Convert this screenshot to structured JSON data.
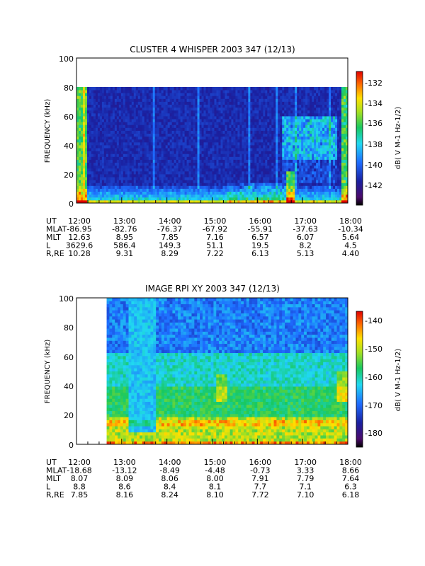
{
  "panels": [
    {
      "title": "CLUSTER 4 WHISPER 2003 347 (12/13)",
      "ylabel": "FREQUENCY (kHz)",
      "yticks": [
        "0",
        "20",
        "40",
        "60",
        "80",
        "100"
      ],
      "ylim": [
        0,
        100
      ],
      "xticks": [
        "12:00",
        "13:00",
        "14:00",
        "15:00",
        "16:00",
        "17:00",
        "18:00"
      ],
      "colorbar_label": "dB( V M-1 Hz-1/2)",
      "colorbar_ticks": [
        "-132",
        "-134",
        "-136",
        "-138",
        "-140",
        "-142"
      ],
      "ephemeris": [
        {
          "label": "UT",
          "values": [
            "12:00",
            "13:00",
            "14:00",
            "15:00",
            "16:00",
            "17:00",
            "18:00"
          ]
        },
        {
          "label": "MLAT",
          "values": [
            "-86.95",
            "-82.76",
            "-76.37",
            "-67.92",
            "-55.91",
            "-37.63",
            "-10.34"
          ]
        },
        {
          "label": "MLT",
          "values": [
            "12.63",
            "8.95",
            "7.85",
            "7.16",
            "6.57",
            "6.07",
            "5.64"
          ]
        },
        {
          "label": "L",
          "values": [
            "3629.6",
            "586.4",
            "149.3",
            "51.1",
            "19.5",
            "8.2",
            "4.5"
          ]
        },
        {
          "label": "R,RE",
          "values": [
            "10.28",
            "9.31",
            "8.29",
            "7.22",
            "6.13",
            "5.13",
            "4.40"
          ]
        }
      ]
    },
    {
      "title": "IMAGE RPI XY 2003 347 (12/13)",
      "ylabel": "FREQUENCY (kHz)",
      "yticks": [
        "0",
        "20",
        "40",
        "60",
        "80",
        "100"
      ],
      "ylim": [
        0,
        100
      ],
      "xticks": [
        "12:00",
        "13:00",
        "14:00",
        "15:00",
        "16:00",
        "17:00",
        "18:00"
      ],
      "colorbar_label": "dB( V M-1 Hz-1/2)",
      "colorbar_ticks": [
        "-140",
        "-150",
        "-160",
        "-170",
        "-180"
      ],
      "ephemeris": [
        {
          "label": "UT",
          "values": [
            "12:00",
            "13:00",
            "14:00",
            "15:00",
            "16:00",
            "17:00",
            "18:00"
          ]
        },
        {
          "label": "MLAT",
          "values": [
            "-18.68",
            "-13.12",
            "-8.49",
            "-4.48",
            "-0.73",
            "3.33",
            "8.66"
          ]
        },
        {
          "label": "MLT",
          "values": [
            "8.07",
            "8.09",
            "8.06",
            "8.00",
            "7.91",
            "7.79",
            "7.64"
          ]
        },
        {
          "label": "L",
          "values": [
            "8.8",
            "8.6",
            "8.4",
            "8.1",
            "7.7",
            "7.1",
            "6.3"
          ]
        },
        {
          "label": "R,RE",
          "values": [
            "7.85",
            "8.16",
            "8.24",
            "8.10",
            "7.72",
            "7.10",
            "6.18"
          ]
        }
      ]
    }
  ],
  "chart_data": [
    {
      "type": "heatmap",
      "title": "CLUSTER 4 WHISPER 2003 347 (12/13)",
      "xlabel": "UT",
      "ylabel": "FREQUENCY (kHz)",
      "x": [
        "12:00",
        "13:00",
        "14:00",
        "15:00",
        "16:00",
        "17:00",
        "18:00"
      ],
      "ylim": [
        0,
        100
      ],
      "data_ylim": [
        0,
        80
      ],
      "colorbar_label": "dB( V M-1 Hz-1/2)",
      "colorbar_range": [
        -143.5,
        -131.5
      ]
    },
    {
      "type": "heatmap",
      "title": "IMAGE RPI XY 2003 347 (12/13)",
      "xlabel": "UT",
      "ylabel": "FREQUENCY (kHz)",
      "x": [
        "12:00",
        "13:00",
        "14:00",
        "15:00",
        "16:00",
        "17:00",
        "18:00"
      ],
      "ylim": [
        0,
        100
      ],
      "data_xstart": "12:40",
      "colorbar_label": "dB( V M-1 Hz-1/2)",
      "colorbar_range": [
        -185,
        -137
      ]
    }
  ]
}
